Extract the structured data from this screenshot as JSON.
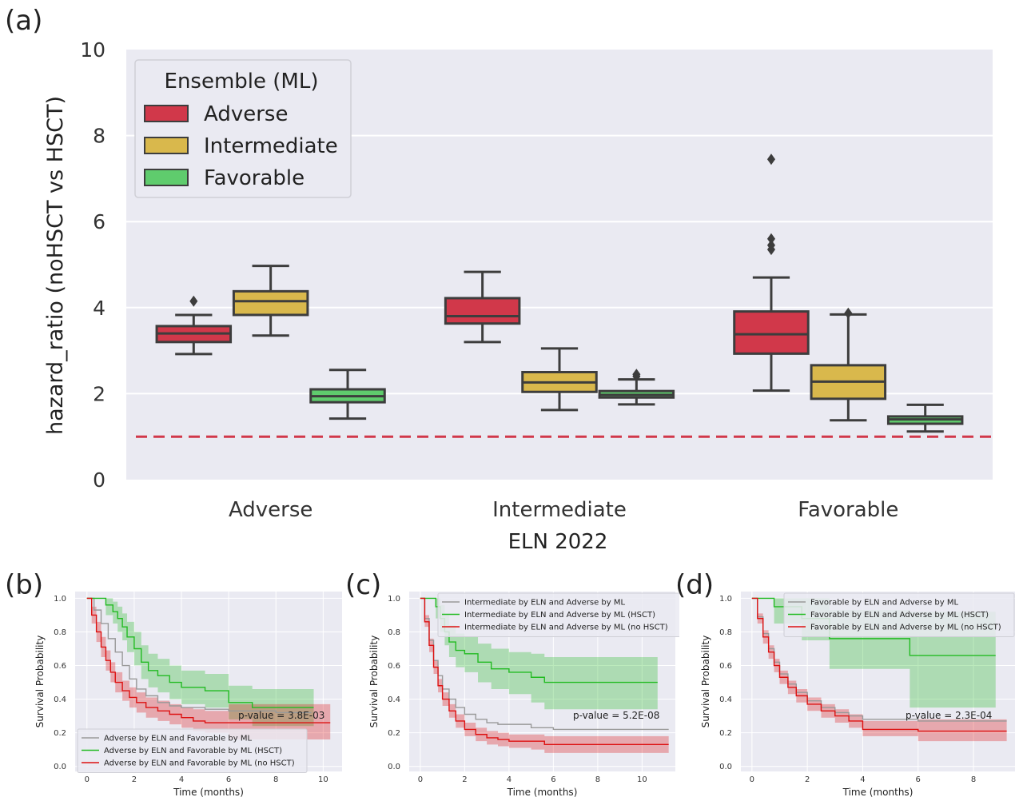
{
  "chart_data": [
    {
      "panel": "(a)",
      "type": "box",
      "xlabel": "ELN 2022",
      "ylabel": "hazard_ratio (noHSCT vs HSCT)",
      "ylim": [
        0,
        10
      ],
      "yticks": [
        "0",
        "2",
        "4",
        "6",
        "8",
        "10"
      ],
      "grid": true,
      "categories": [
        "Adverse",
        "Intermediate",
        "Favorable"
      ],
      "legend": {
        "title": "Ensemble (ML)",
        "position": "top-left",
        "entries": [
          {
            "name": "Adverse",
            "color": "#d1384a"
          },
          {
            "name": "Intermediate",
            "color": "#d9b84c"
          },
          {
            "name": "Favorable",
            "color": "#5fcc6d"
          }
        ]
      },
      "reference_line": {
        "y": 1,
        "color": "#d1384a",
        "style": "dashed"
      },
      "series": [
        {
          "name": "Adverse",
          "color": "#d1384a",
          "boxes": [
            {
              "category": "Adverse",
              "whislo": 2.92,
              "q1": 3.2,
              "median": 3.4,
              "q3": 3.57,
              "whishi": 3.83,
              "fliers": [
                4.15
              ]
            },
            {
              "category": "Intermediate",
              "whislo": 3.2,
              "q1": 3.63,
              "median": 3.8,
              "q3": 4.22,
              "whishi": 4.83,
              "fliers": []
            },
            {
              "category": "Favorable",
              "whislo": 2.07,
              "q1": 2.93,
              "median": 3.38,
              "q3": 3.91,
              "whishi": 4.7,
              "fliers": [
                5.35,
                5.45,
                5.6,
                7.45
              ]
            }
          ]
        },
        {
          "name": "Intermediate",
          "color": "#d9b84c",
          "boxes": [
            {
              "category": "Adverse",
              "whislo": 3.35,
              "q1": 3.83,
              "median": 4.15,
              "q3": 4.38,
              "whishi": 4.97,
              "fliers": []
            },
            {
              "category": "Intermediate",
              "whislo": 1.62,
              "q1": 2.04,
              "median": 2.26,
              "q3": 2.5,
              "whishi": 3.05,
              "fliers": []
            },
            {
              "category": "Favorable",
              "whislo": 1.38,
              "q1": 1.88,
              "median": 2.28,
              "q3": 2.66,
              "whishi": 3.84,
              "fliers": [
                3.87
              ]
            }
          ]
        },
        {
          "name": "Favorable",
          "color": "#5fcc6d",
          "boxes": [
            {
              "category": "Adverse",
              "whislo": 1.42,
              "q1": 1.8,
              "median": 1.94,
              "q3": 2.1,
              "whishi": 2.55,
              "fliers": []
            },
            {
              "category": "Intermediate",
              "whislo": 1.75,
              "q1": 1.91,
              "median": 1.97,
              "q3": 2.06,
              "whishi": 2.33,
              "fliers": [
                2.4,
                2.45
              ]
            },
            {
              "category": "Favorable",
              "whislo": 1.12,
              "q1": 1.3,
              "median": 1.4,
              "q3": 1.47,
              "whishi": 1.74,
              "fliers": []
            }
          ]
        }
      ]
    },
    {
      "panel": "(b)",
      "type": "line",
      "xlabel": "Time (months)",
      "ylabel": "Survival Probability",
      "xlim": [
        -0.5,
        10.8
      ],
      "ylim": [
        -0.03,
        1.04
      ],
      "xticks": [
        "0",
        "2",
        "4",
        "6",
        "8",
        "10"
      ],
      "yticks": [
        "0.0",
        "0.2",
        "0.4",
        "0.6",
        "0.8",
        "1.0"
      ],
      "legend_position": "bottom-left",
      "annotation": "p-value = 3.8E-03",
      "series": [
        {
          "name": "Adverse by ELN and Favorable by ML",
          "color": "#999999",
          "x": [
            0,
            0.3,
            0.6,
            0.9,
            1.2,
            1.5,
            1.8,
            2.1,
            2.5,
            3,
            3.5,
            4,
            5,
            6,
            7,
            8,
            9.5
          ],
          "y": [
            1,
            0.93,
            0.85,
            0.76,
            0.68,
            0.6,
            0.52,
            0.46,
            0.42,
            0.38,
            0.36,
            0.35,
            0.34,
            0.33,
            0.33,
            0.32,
            0.32
          ]
        },
        {
          "name": "Adverse by ELN and Favorable by ML (HSCT)",
          "color": "#22bb22",
          "x": [
            0,
            0.8,
            1.1,
            1.3,
            1.5,
            1.7,
            2,
            2.3,
            2.6,
            3,
            3.5,
            4,
            5,
            6,
            7,
            9.6
          ],
          "y": [
            1,
            0.96,
            0.92,
            0.88,
            0.83,
            0.77,
            0.7,
            0.62,
            0.57,
            0.54,
            0.5,
            0.47,
            0.45,
            0.38,
            0.35,
            0.35
          ],
          "band": {
            "lower": [
              1,
              0.9,
              0.85,
              0.8,
              0.75,
              0.68,
              0.6,
              0.52,
              0.47,
              0.44,
              0.4,
              0.37,
              0.35,
              0.28,
              0.24,
              0.24
            ],
            "upper": [
              1,
              1,
              0.98,
              0.95,
              0.91,
              0.86,
              0.8,
              0.72,
              0.67,
              0.64,
              0.6,
              0.57,
              0.55,
              0.48,
              0.46,
              0.46
            ]
          }
        },
        {
          "name": "Adverse by ELN and Favorable by ML (no HSCT)",
          "color": "#dd1111",
          "x": [
            0,
            0.2,
            0.4,
            0.6,
            0.8,
            1,
            1.2,
            1.5,
            1.8,
            2.1,
            2.5,
            3,
            3.5,
            4,
            4.5,
            5,
            6,
            10.3
          ],
          "y": [
            1,
            0.9,
            0.8,
            0.71,
            0.63,
            0.56,
            0.5,
            0.45,
            0.41,
            0.38,
            0.35,
            0.33,
            0.31,
            0.29,
            0.27,
            0.26,
            0.26,
            0.26
          ],
          "band": {
            "lower": [
              1,
              0.85,
              0.74,
              0.65,
              0.57,
              0.5,
              0.44,
              0.39,
              0.35,
              0.32,
              0.29,
              0.27,
              0.25,
              0.23,
              0.21,
              0.2,
              0.16,
              0.16
            ],
            "upper": [
              1,
              0.95,
              0.86,
              0.77,
              0.69,
              0.62,
              0.56,
              0.51,
              0.47,
              0.44,
              0.41,
              0.39,
              0.37,
              0.35,
              0.34,
              0.33,
              0.37,
              0.37
            ]
          }
        }
      ]
    },
    {
      "panel": "(c)",
      "type": "line",
      "xlabel": "Time (months)",
      "ylabel": "Survival Probability",
      "xlim": [
        -0.5,
        11.5
      ],
      "ylim": [
        -0.03,
        1.04
      ],
      "xticks": [
        "0",
        "2",
        "4",
        "6",
        "8",
        "10"
      ],
      "yticks": [
        "0.0",
        "0.2",
        "0.4",
        "0.6",
        "0.8",
        "1.0"
      ],
      "legend_position": "top-right",
      "annotation": "p-value = 5.2E-08",
      "series": [
        {
          "name": "Intermediate by ELN and Adverse by ML",
          "color": "#999999",
          "x": [
            0,
            0.2,
            0.4,
            0.6,
            0.8,
            1,
            1.3,
            1.6,
            2,
            2.5,
            3,
            3.5,
            4,
            5,
            6,
            8,
            11.2
          ],
          "y": [
            1,
            0.88,
            0.75,
            0.63,
            0.54,
            0.46,
            0.4,
            0.35,
            0.31,
            0.28,
            0.26,
            0.25,
            0.25,
            0.23,
            0.22,
            0.22,
            0.22
          ]
        },
        {
          "name": "Intermediate by ELN and Adverse by ML (HSCT)",
          "color": "#22bb22",
          "x": [
            0,
            0.7,
            0.9,
            1.1,
            1.3,
            1.6,
            2,
            2.6,
            3.2,
            4,
            5,
            5.6,
            6,
            8,
            10.7
          ],
          "y": [
            1,
            0.95,
            0.88,
            0.8,
            0.74,
            0.69,
            0.67,
            0.62,
            0.58,
            0.56,
            0.53,
            0.5,
            0.5,
            0.5,
            0.5
          ],
          "band": {
            "lower": [
              1,
              0.88,
              0.8,
              0.72,
              0.65,
              0.59,
              0.56,
              0.5,
              0.46,
              0.43,
              0.38,
              0.34,
              0.34,
              0.34,
              0.34
            ],
            "upper": [
              1,
              1,
              0.96,
              0.9,
              0.84,
              0.79,
              0.77,
              0.73,
              0.7,
              0.68,
              0.67,
              0.65,
              0.65,
              0.65,
              0.65
            ]
          }
        },
        {
          "name": "Intermediate by ELN and Adverse by ML (no HSCT)",
          "color": "#dd1111",
          "x": [
            0,
            0.2,
            0.4,
            0.6,
            0.8,
            1,
            1.3,
            1.6,
            2,
            2.5,
            3,
            3.5,
            4,
            5,
            5.6,
            8,
            11.2
          ],
          "y": [
            1,
            0.86,
            0.72,
            0.59,
            0.48,
            0.4,
            0.33,
            0.27,
            0.22,
            0.19,
            0.17,
            0.16,
            0.15,
            0.15,
            0.13,
            0.13,
            0.13
          ],
          "band": {
            "lower": [
              1,
              0.83,
              0.68,
              0.55,
              0.44,
              0.36,
              0.29,
              0.23,
              0.18,
              0.15,
              0.13,
              0.12,
              0.11,
              0.1,
              0.08,
              0.08,
              0.08
            ],
            "upper": [
              1,
              0.9,
              0.76,
              0.63,
              0.52,
              0.44,
              0.37,
              0.31,
              0.26,
              0.23,
              0.21,
              0.2,
              0.19,
              0.19,
              0.18,
              0.18,
              0.18
            ]
          }
        }
      ]
    },
    {
      "panel": "(d)",
      "type": "line",
      "xlabel": "Time (months)",
      "ylabel": "Survival Probability",
      "xlim": [
        -0.4,
        9.5
      ],
      "ylim": [
        -0.03,
        1.04
      ],
      "xticks": [
        "0",
        "2",
        "4",
        "6",
        "8"
      ],
      "yticks": [
        "0.0",
        "0.2",
        "0.4",
        "0.6",
        "0.8",
        "1.0"
      ],
      "legend_position": "top-right",
      "annotation": "p-value = 2.3E-04",
      "series": [
        {
          "name": "Favorable by ELN and Adverse by ML",
          "color": "#999999",
          "x": [
            0,
            0.2,
            0.4,
            0.6,
            0.8,
            1,
            1.3,
            1.6,
            2,
            2.5,
            3,
            3.5,
            4,
            6,
            9.2
          ],
          "y": [
            1,
            0.89,
            0.79,
            0.7,
            0.62,
            0.55,
            0.49,
            0.44,
            0.39,
            0.35,
            0.32,
            0.3,
            0.28,
            0.27,
            0.27
          ]
        },
        {
          "name": "Favorable by ELN and Adverse by ML (HSCT)",
          "color": "#22bb22",
          "x": [
            0,
            0.8,
            1.8,
            2.8,
            5.7,
            8.8
          ],
          "y": [
            1,
            0.95,
            0.88,
            0.76,
            0.66,
            0.66
          ],
          "band": {
            "lower": [
              1,
              0.85,
              0.75,
              0.58,
              0.35,
              0.35
            ],
            "upper": [
              1,
              1,
              1,
              0.93,
              0.92,
              0.92
            ]
          }
        },
        {
          "name": "Favorable by ELN and Adverse by ML (no HSCT)",
          "color": "#dd1111",
          "x": [
            0,
            0.2,
            0.4,
            0.6,
            0.8,
            1,
            1.3,
            1.6,
            2,
            2.5,
            3,
            3.5,
            4,
            6,
            9.2
          ],
          "y": [
            1,
            0.88,
            0.77,
            0.68,
            0.6,
            0.53,
            0.47,
            0.42,
            0.37,
            0.33,
            0.3,
            0.27,
            0.22,
            0.21,
            0.21
          ],
          "band": {
            "lower": [
              1,
              0.85,
              0.73,
              0.64,
              0.56,
              0.49,
              0.43,
              0.38,
              0.33,
              0.29,
              0.26,
              0.23,
              0.18,
              0.15,
              0.15
            ],
            "upper": [
              1,
              0.91,
              0.81,
              0.72,
              0.64,
              0.57,
              0.51,
              0.46,
              0.41,
              0.37,
              0.34,
              0.31,
              0.27,
              0.28,
              0.28
            ]
          }
        }
      ]
    }
  ]
}
